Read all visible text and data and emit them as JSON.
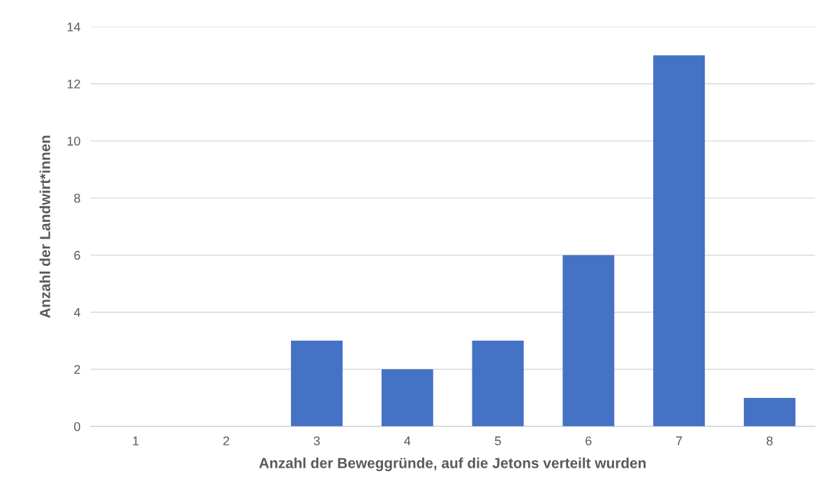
{
  "chart_data": {
    "type": "bar",
    "xlabel": "Anzahl der Beweggründe, auf die Jetons verteilt wurden",
    "ylabel": "Anzahl der Landwirt*innen",
    "categories": [
      "1",
      "2",
      "3",
      "4",
      "5",
      "6",
      "7",
      "8"
    ],
    "values": [
      0,
      0,
      3,
      2,
      3,
      6,
      13,
      1
    ],
    "color": "#4472c4",
    "ylim": [
      0,
      14
    ],
    "yticks": [
      0,
      2,
      4,
      6,
      8,
      10,
      12,
      14
    ],
    "grid": "y",
    "legend": false
  }
}
